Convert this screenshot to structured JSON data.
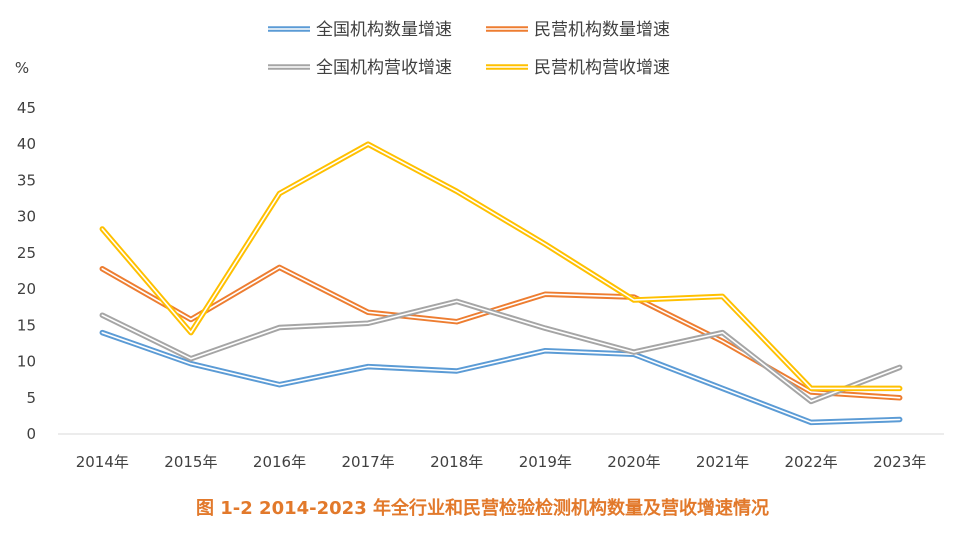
{
  "chart_data": {
    "type": "line",
    "title": "",
    "ylabel": "%",
    "xlabel": "",
    "ylim": [
      0,
      45
    ],
    "yticks": [
      0,
      5,
      10,
      15,
      20,
      25,
      30,
      35,
      40,
      45
    ],
    "categories": [
      "2014年",
      "2015年",
      "2016年",
      "2017年",
      "2018年",
      "2019年",
      "2020年",
      "2021年",
      "2022年",
      "2023年"
    ],
    "legend_position": "top",
    "series": [
      {
        "name": "全国机构数量增速",
        "color": "#5B9BD5",
        "values": [
          14.0,
          9.7,
          6.8,
          9.3,
          8.7,
          11.5,
          11.0,
          6.3,
          1.6,
          2.0
        ]
      },
      {
        "name": "民营机构数量增速",
        "color": "#ED7D31",
        "values": [
          22.8,
          15.8,
          23.0,
          16.8,
          15.5,
          19.3,
          18.9,
          12.8,
          5.8,
          5.0
        ]
      },
      {
        "name": "全国机构营收增速",
        "color": "#A5A5A5",
        "values": [
          16.4,
          10.4,
          14.7,
          15.3,
          18.3,
          14.6,
          11.3,
          14.0,
          4.5,
          9.2
        ]
      },
      {
        "name": "民营机构营收增速",
        "color": "#FFC000",
        "values": [
          28.3,
          14.0,
          33.2,
          40.0,
          33.5,
          26.2,
          18.5,
          19.0,
          6.3,
          6.3
        ]
      }
    ]
  },
  "caption": "图 1-2    2014-2023 年全行业和民营检验检测机构数量及营收增速情况"
}
